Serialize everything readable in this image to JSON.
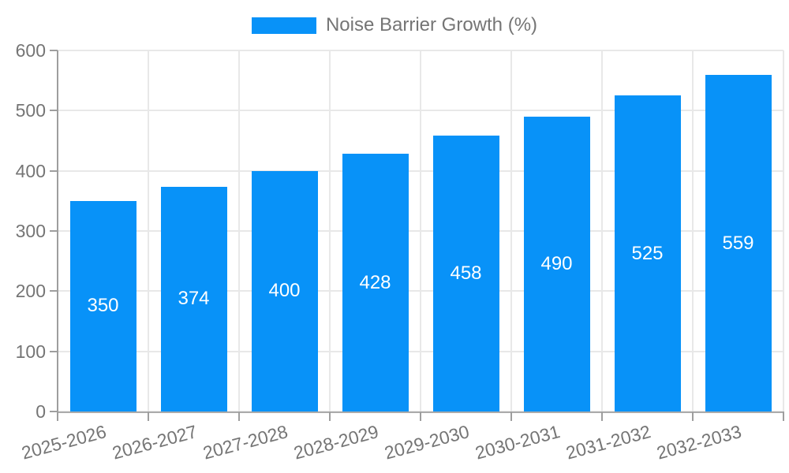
{
  "chart_data": {
    "type": "bar",
    "title": "",
    "legend": {
      "label": "Noise Barrier Growth (%)",
      "position": "top"
    },
    "categories": [
      "2025-2026",
      "2026-2027",
      "2027-2028",
      "2028-2029",
      "2029-2030",
      "2030-2031",
      "2031-2032",
      "2032-2033"
    ],
    "series": [
      {
        "name": "Noise Barrier Growth (%)",
        "values": [
          350,
          374,
          400,
          428,
          458,
          490,
          525,
          559
        ]
      }
    ],
    "value_labels": [
      "350",
      "374",
      "400",
      "428",
      "458",
      "490",
      "525",
      "559"
    ],
    "xlabel": "",
    "ylabel": "",
    "ylim": [
      0,
      600
    ],
    "yticks": [
      0,
      100,
      200,
      300,
      400,
      500,
      600
    ],
    "grid": "on",
    "colors": {
      "bar": "#0892f8",
      "value_label_text": "#ffffff",
      "axis_text": "#757575",
      "axis_line": "#9e9e9e",
      "gridline": "#e8e8e8",
      "background": "#ffffff"
    }
  }
}
